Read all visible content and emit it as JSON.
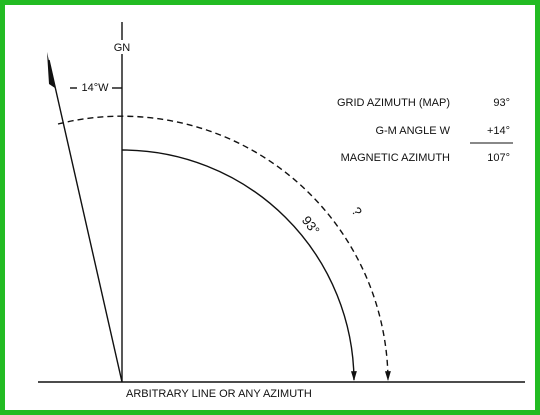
{
  "diagram": {
    "north_label": "GN",
    "declination_label": "14°W",
    "grid_arc_label": "93°",
    "magnetic_arc_label": "?",
    "baseline_label": "ARBITRARY LINE OR ANY AZIMUTH"
  },
  "table": {
    "rows": [
      [
        "GRID AZIMUTH (MAP)",
        "93°"
      ],
      [
        "G-M ANGLE W",
        "+14°"
      ],
      [
        "MAGNETIC AZIMUTH",
        "107°"
      ]
    ]
  }
}
